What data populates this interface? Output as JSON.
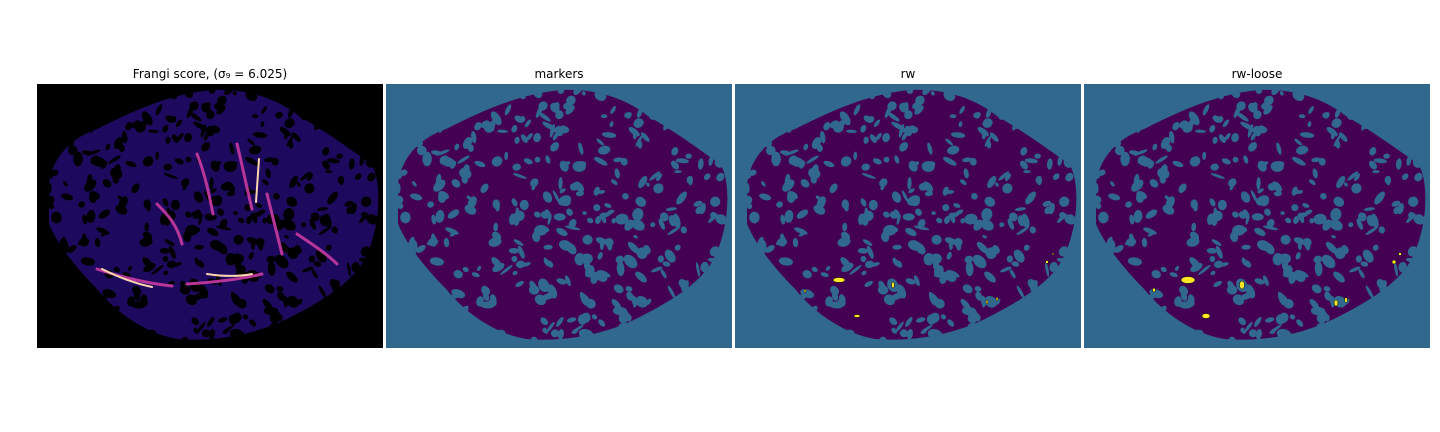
{
  "panels": [
    {
      "title": "Frangi score, (σ₉ = 6.025)",
      "background": "#000000",
      "colormap": "magma"
    },
    {
      "title": "markers",
      "background": "#31688e",
      "colormap": "viridis"
    },
    {
      "title": "rw",
      "background": "#31688e",
      "colormap": "viridis"
    },
    {
      "title": "rw-loose",
      "background": "#31688e",
      "colormap": "viridis"
    }
  ],
  "colors": {
    "viridis_dark": "#440154",
    "viridis_mid": "#31688e",
    "viridis_bright": "#fde725",
    "magma_bg": "#000000",
    "magma_blob": "#2c0a8f",
    "magma_ridge": "#d64fa0",
    "magma_peak": "#fcd5b0"
  }
}
